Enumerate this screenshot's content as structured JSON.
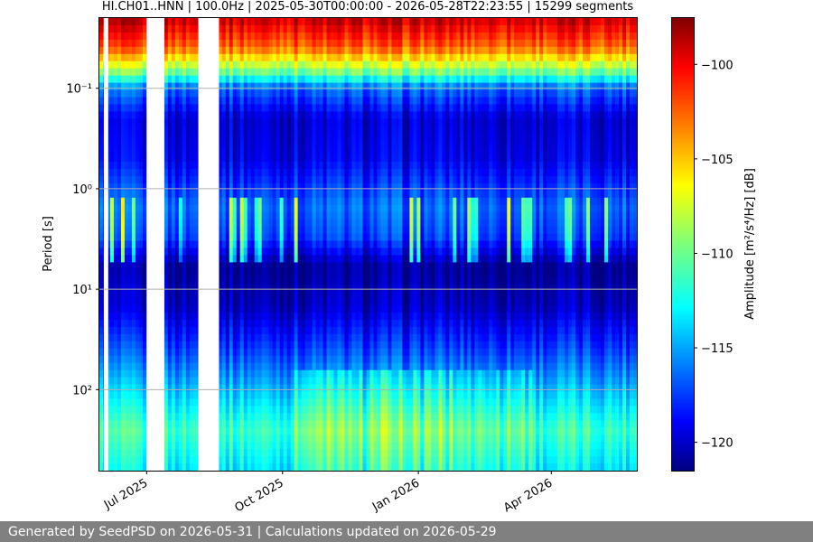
{
  "chart_data": {
    "type": "heatmap",
    "title": "HI.CH01..HNN | 100.0Hz | 2025-05-30T00:00:00 - 2026-05-28T22:23:55 | 15299 segments",
    "xlabel": "",
    "ylabel": "Period [s]",
    "x_range": [
      "2025-05-30T00:00:00",
      "2026-05-28T22:23:55"
    ],
    "x_tick_labels": [
      "Jul 2025",
      "Oct 2025",
      "Jan 2026",
      "Apr 2026"
    ],
    "x_tick_dates": [
      "2025-07-01",
      "2025-10-01",
      "2026-01-01",
      "2026-04-01"
    ],
    "y_scale": "log",
    "y_inverted": true,
    "y_range": [
      0.02,
      640
    ],
    "y_ticks": [
      0.1,
      1,
      10,
      100
    ],
    "y_tick_labels": [
      "10⁻¹",
      "10⁰",
      "10¹",
      "10²"
    ],
    "grid": true,
    "colorbar": {
      "label": "Amplitude [m²/s⁴/Hz] [dB]",
      "range": [
        -121.5,
        -97.5
      ],
      "ticks": [
        -100,
        -105,
        -110,
        -115,
        -120
      ],
      "tick_labels": [
        "−100",
        "−105",
        "−110",
        "−115",
        "−120"
      ],
      "colormap": "jet"
    },
    "data_gaps": [
      [
        "2025-06-02",
        "2025-06-05"
      ],
      [
        "2025-07-01",
        "2025-07-13"
      ],
      [
        "2025-08-05",
        "2025-08-19"
      ]
    ],
    "period_profile_db": [
      {
        "period": 0.02,
        "db": -99
      },
      {
        "period": 0.04,
        "db": -103
      },
      {
        "period": 0.07,
        "db": -110
      },
      {
        "period": 0.1,
        "db": -116
      },
      {
        "period": 0.2,
        "db": -119.5
      },
      {
        "period": 0.5,
        "db": -119
      },
      {
        "period": 1.5,
        "db": -116
      },
      {
        "period": 3,
        "db": -117
      },
      {
        "period": 6,
        "db": -121
      },
      {
        "period": 15,
        "db": -120
      },
      {
        "period": 40,
        "db": -117
      },
      {
        "period": 100,
        "db": -114
      },
      {
        "period": 250,
        "db": -111
      },
      {
        "period": 640,
        "db": -113
      }
    ]
  },
  "footer": {
    "text": "Generated by SeedPSD on 2026-05-31 | Calculations updated on 2026-05-29"
  }
}
